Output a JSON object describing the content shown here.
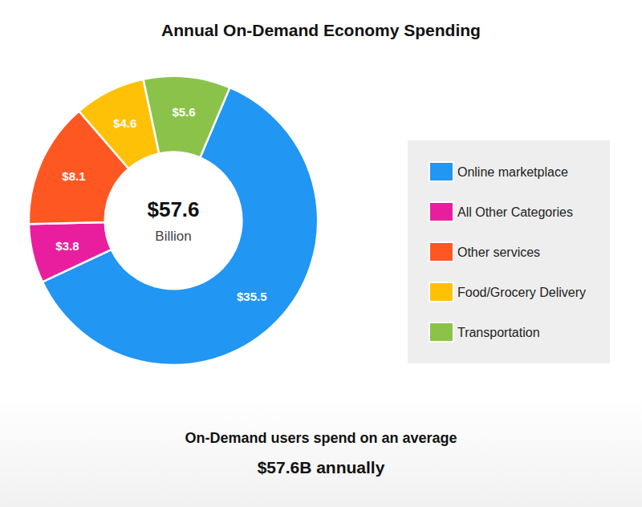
{
  "chart_data": {
    "type": "pie",
    "title": "Annual On-Demand Economy Spending",
    "categories": [
      "Online marketplace",
      "All Other Categories",
      "Other services",
      "Food/Grocery Delivery",
      "Transportation"
    ],
    "values": [
      35.5,
      3.8,
      8.1,
      4.6,
      5.6
    ],
    "value_labels": [
      "$35.5",
      "$3.8",
      "$8.1",
      "$4.6",
      "$5.6"
    ],
    "colors": [
      "#2196F3",
      "#E91E9E",
      "#FF5722",
      "#FFC107",
      "#8BC34A"
    ],
    "data_labels": true,
    "legend": "right",
    "annotations": {
      "center": [
        "$57.6",
        "Billion"
      ],
      "footer": [
        "On-Demand users spend on an average",
        "$57.6B annually"
      ]
    }
  }
}
